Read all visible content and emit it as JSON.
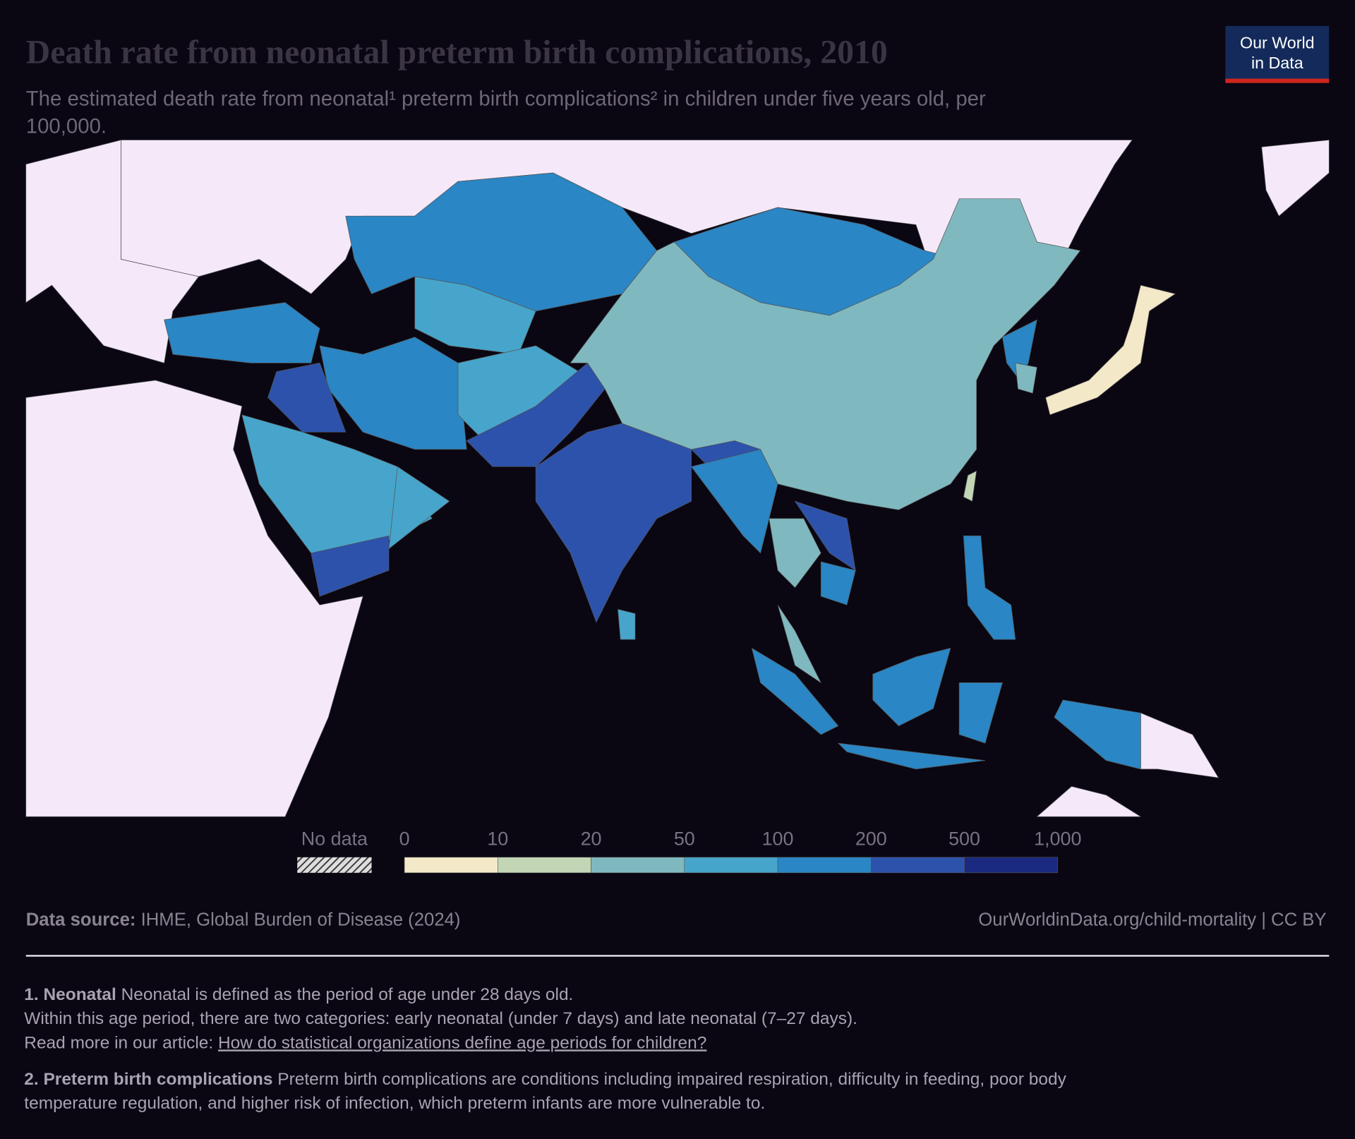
{
  "header": {
    "title": "Death rate from neonatal preterm birth complications, 2010",
    "subtitle": [
      "The estimated death rate from neonatal¹ preterm birth complications² in children under five years old, per",
      "100,000."
    ],
    "logo": [
      "Our World",
      "in Data"
    ]
  },
  "legend": {
    "no_data": "No data",
    "ticks": [
      0,
      10,
      20,
      50,
      100,
      200,
      500,
      {
        "value": 1000,
        "label": "1,000"
      }
    ],
    "colors": [
      "#f3e8c8",
      "#c2d6b5",
      "#7fb9bf",
      "#47a5cb",
      "#2a86c4",
      "#2c52ab",
      "#1b2a80"
    ]
  },
  "footer": {
    "source_label": "Data source:",
    "source": "IHME, Global Burden of Disease (2024)",
    "url": "OurWorldinData.org/child-mortality | CC BY"
  },
  "notes": [
    {
      "label": "1. Neonatal",
      "lines": [
        "Neonatal is defined as the period of age under 28 days old.",
        "Within this age period, there are two categories: early neonatal (under 7 days) and late neonatal (7–27 days).",
        "Read more in our article:"
      ],
      "link": "How do statistical organizations define age periods for children?"
    },
    {
      "label": "2. Preterm birth complications",
      "lines": [
        "Preterm birth complications are conditions including impaired respiration, difficulty in feeding, poor body",
        "temperature regulation, and higher risk of infection, which preterm infants are more vulnerable to."
      ]
    }
  ]
}
